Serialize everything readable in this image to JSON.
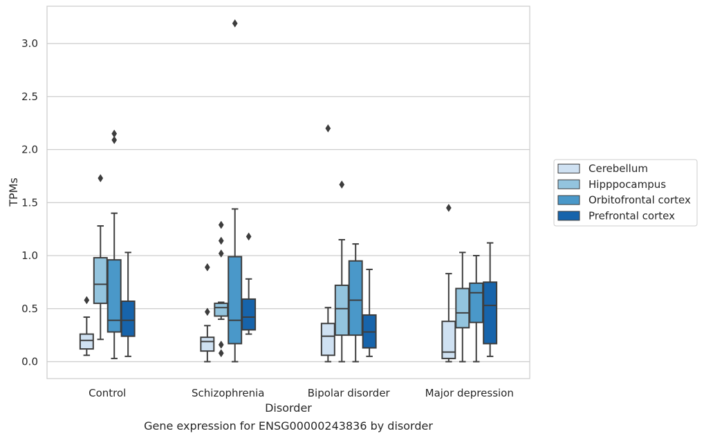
{
  "chart_data": {
    "type": "box",
    "title": "Gene expression for ENSG00000243836 by disorder",
    "xlabel": "Disorder",
    "ylabel": "TPMs",
    "ylim": [
      -0.15,
      3.35
    ],
    "yticks": [
      0.0,
      0.5,
      1.0,
      1.5,
      2.0,
      2.5,
      3.0
    ],
    "ytick_labels": [
      "0.0",
      "0.5",
      "1.0",
      "1.5",
      "2.0",
      "2.5",
      "3.0"
    ],
    "grid": "horizontal",
    "legend_position": "right",
    "categories": [
      "Control",
      "Schizophrenia",
      "Bipolar disorder",
      "Major depression"
    ],
    "series": [
      {
        "name": "Cerebellum",
        "color": "#cfe1f2",
        "boxes": [
          {
            "whislo": 0.06,
            "q1": 0.12,
            "med": 0.2,
            "q3": 0.26,
            "whishi": 0.42,
            "fliers": [
              0.58
            ]
          },
          {
            "whislo": 0.0,
            "q1": 0.1,
            "med": 0.19,
            "q3": 0.23,
            "whishi": 0.34,
            "fliers": [
              0.47,
              0.89
            ]
          },
          {
            "whislo": 0.0,
            "q1": 0.06,
            "med": 0.24,
            "q3": 0.36,
            "whishi": 0.51,
            "fliers": [
              2.2
            ]
          },
          {
            "whislo": 0.0,
            "q1": 0.03,
            "med": 0.09,
            "q3": 0.38,
            "whishi": 0.83,
            "fliers": [
              1.45
            ]
          }
        ]
      },
      {
        "name": "Hipppocampus",
        "color": "#93c4de",
        "boxes": [
          {
            "whislo": 0.21,
            "q1": 0.55,
            "med": 0.73,
            "q3": 0.98,
            "whishi": 1.28,
            "fliers": [
              1.73
            ]
          },
          {
            "whislo": 0.4,
            "q1": 0.43,
            "med": 0.51,
            "q3": 0.55,
            "whishi": 0.56,
            "fliers": [
              1.02,
              1.14,
              1.29,
              0.08,
              0.16
            ]
          },
          {
            "whislo": 0.0,
            "q1": 0.25,
            "med": 0.5,
            "q3": 0.72,
            "whishi": 1.15,
            "fliers": [
              1.67
            ]
          },
          {
            "whislo": 0.0,
            "q1": 0.32,
            "med": 0.46,
            "q3": 0.69,
            "whishi": 1.03,
            "fliers": []
          }
        ]
      },
      {
        "name": "Orbitofrontal cortex",
        "color": "#4a98c9",
        "boxes": [
          {
            "whislo": 0.03,
            "q1": 0.28,
            "med": 0.39,
            "q3": 0.96,
            "whishi": 1.4,
            "fliers": [
              2.09,
              2.15
            ]
          },
          {
            "whislo": 0.0,
            "q1": 0.17,
            "med": 0.39,
            "q3": 0.99,
            "whishi": 1.44,
            "fliers": [
              3.19
            ]
          },
          {
            "whislo": 0.0,
            "q1": 0.25,
            "med": 0.58,
            "q3": 0.95,
            "whishi": 1.11,
            "fliers": []
          },
          {
            "whislo": 0.0,
            "q1": 0.37,
            "med": 0.65,
            "q3": 0.74,
            "whishi": 1.0,
            "fliers": []
          }
        ]
      },
      {
        "name": "Prefrontal cortex",
        "color": "#1764ab",
        "boxes": [
          {
            "whislo": 0.05,
            "q1": 0.24,
            "med": 0.39,
            "q3": 0.57,
            "whishi": 1.03,
            "fliers": []
          },
          {
            "whislo": 0.26,
            "q1": 0.3,
            "med": 0.42,
            "q3": 0.59,
            "whishi": 0.78,
            "fliers": [
              1.18
            ]
          },
          {
            "whislo": 0.05,
            "q1": 0.13,
            "med": 0.28,
            "q3": 0.44,
            "whishi": 0.87,
            "fliers": []
          },
          {
            "whislo": 0.05,
            "q1": 0.17,
            "med": 0.53,
            "q3": 0.75,
            "whishi": 1.12,
            "fliers": []
          }
        ]
      }
    ]
  }
}
